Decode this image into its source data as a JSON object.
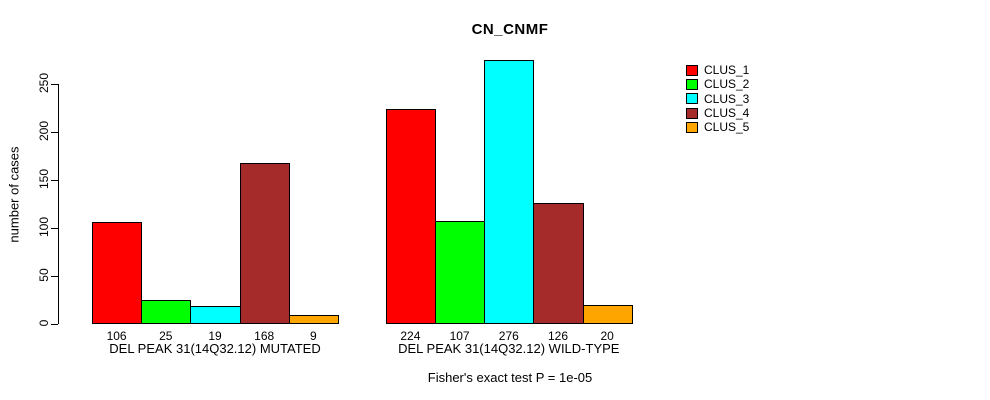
{
  "chart_data": {
    "type": "bar",
    "title": "CN_CNMF",
    "ylabel": "number of cases",
    "xlabel": "",
    "annotation": "Fisher's exact test P = 1e-05",
    "categories": [
      "DEL PEAK 31(14Q32.12) MUTATED",
      "DEL PEAK 31(14Q32.12) WILD-TYPE"
    ],
    "series": [
      {
        "name": "CLUS_1",
        "color": "#FF0000",
        "values": [
          106,
          224
        ]
      },
      {
        "name": "CLUS_2",
        "color": "#00FF00",
        "values": [
          25,
          107
        ]
      },
      {
        "name": "CLUS_3",
        "color": "#00FFFF",
        "values": [
          19,
          276
        ]
      },
      {
        "name": "CLUS_4",
        "color": "#A52A2A",
        "values": [
          168,
          126
        ]
      },
      {
        "name": "CLUS_5",
        "color": "#FFA500",
        "values": [
          9,
          20
        ]
      }
    ],
    "bar_value_labels": [
      [
        106,
        25,
        19,
        168,
        9
      ],
      [
        224,
        107,
        276,
        126,
        20
      ]
    ],
    "y_ticks": [
      0,
      50,
      100,
      150,
      200,
      250
    ],
    "ylim": [
      0,
      276
    ],
    "grid": false,
    "legend_position": "top-right",
    "background_color": "#FFFFFF",
    "axis_color": "#000000"
  }
}
